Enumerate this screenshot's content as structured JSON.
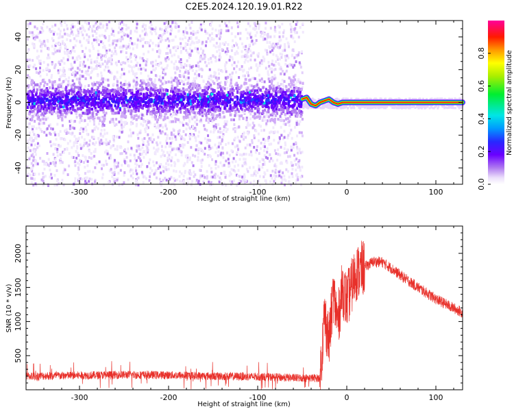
{
  "title": "C2E5.2024.120.19.01.R22",
  "colors": {
    "spectrum_background": "#ffffff",
    "snr_line": "#e8302a",
    "frame": "#000000"
  },
  "chart_data": [
    {
      "type": "heatmap",
      "title": "C2E5.2024.120.19.01.R22",
      "xlabel": "Height of straight line (km)",
      "ylabel": "Frequency (Hz)",
      "xlim": [
        -360,
        130
      ],
      "ylim": [
        -50,
        50
      ],
      "xticks": [
        -300,
        -200,
        -100,
        0,
        100
      ],
      "yticks": [
        -40,
        -20,
        0,
        20,
        40
      ],
      "grid": false,
      "colorbar": {
        "label": "Normalized spectral amplitude",
        "range": [
          0,
          1
        ],
        "ticks": [
          "0.0",
          "0.2",
          "0.4",
          "0.6",
          "0.8"
        ],
        "colormap": "rainbow (white-violet-blue-cyan-green-yellow-red-magenta)"
      },
      "features": {
        "noise_region_x": [
          -360,
          -50
        ],
        "noise_band_center_hz": 2,
        "noise_band_halfwidth_hz": 10,
        "signal_region_x": [
          -50,
          130
        ],
        "signal_trace": {
          "x": [
            -50,
            -45,
            -40,
            -35,
            -30,
            -25,
            -20,
            -15,
            -10,
            -5,
            0,
            20,
            60,
            100,
            130
          ],
          "freq": [
            2,
            3,
            -1,
            -2,
            0,
            1,
            2,
            0,
            -1,
            0,
            0,
            0,
            0,
            0,
            0
          ]
        }
      }
    },
    {
      "type": "line",
      "xlabel": "Height of straight line (km)",
      "ylabel": "SNR (10 * v/v)",
      "xlim": [
        -360,
        130
      ],
      "ylim": [
        0,
        2400
      ],
      "xticks": [
        -300,
        -200,
        -100,
        0,
        100
      ],
      "yticks": [
        500,
        1000,
        1500,
        2000
      ],
      "grid": false,
      "series": [
        {
          "x": [
            -360,
            -300,
            -250,
            -200,
            -150,
            -100,
            -60,
            -30,
            -25,
            -20,
            -15,
            -10,
            -5,
            0,
            10,
            20,
            30,
            40,
            50,
            60,
            80,
            100,
            130
          ],
          "y": [
            200,
            210,
            220,
            215,
            200,
            190,
            175,
            170,
            1100,
            700,
            1400,
            1000,
            1500,
            1300,
            1700,
            1800,
            1880,
            1870,
            1780,
            1680,
            1500,
            1330,
            1130
          ]
        }
      ]
    }
  ]
}
